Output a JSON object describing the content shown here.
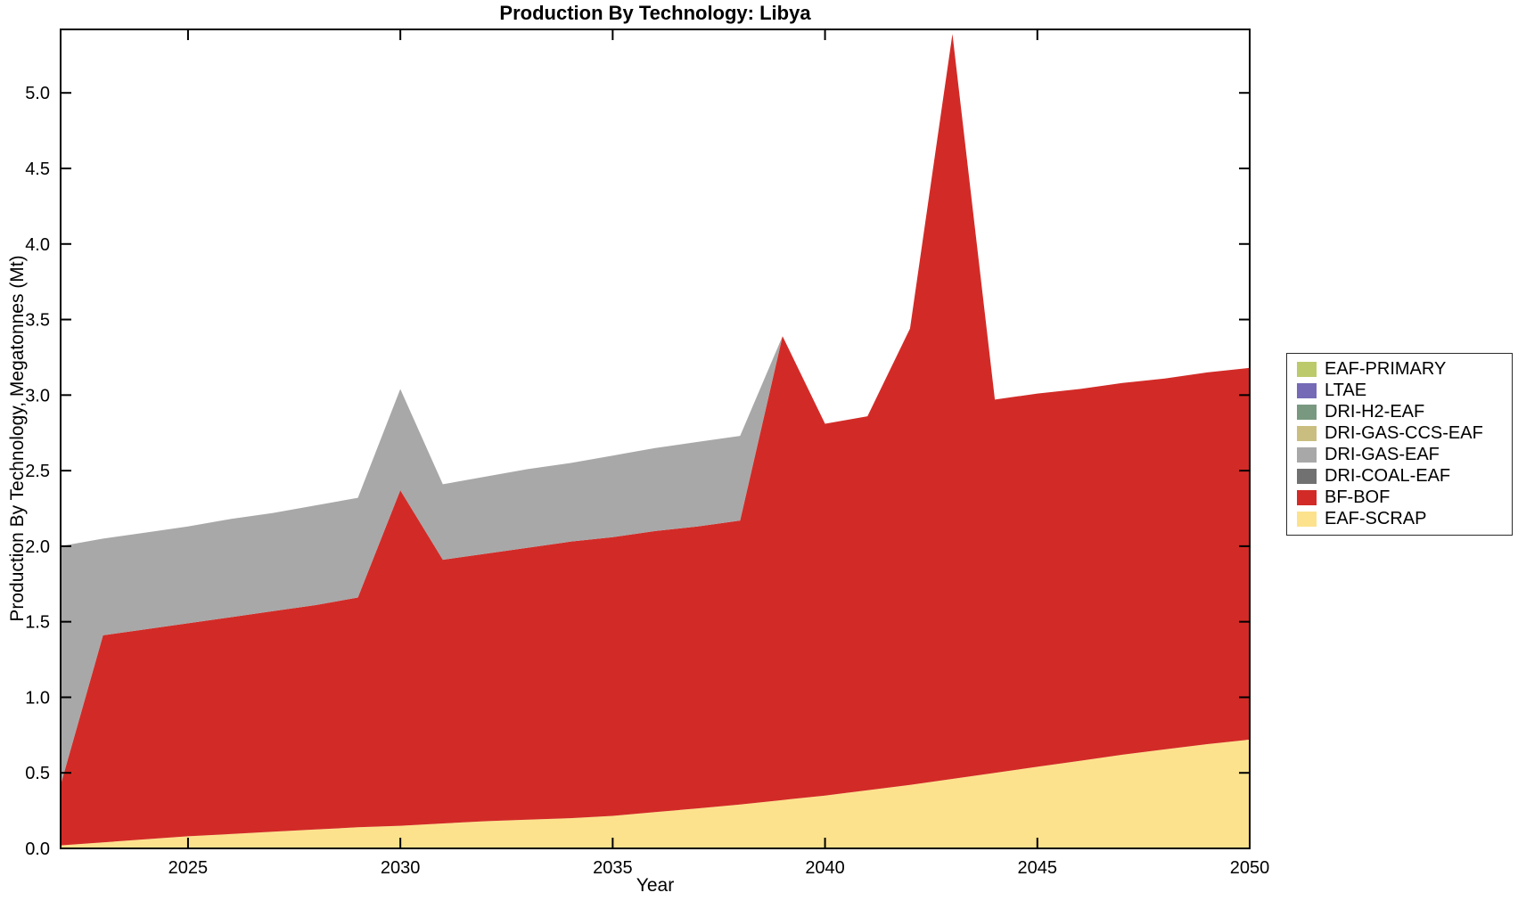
{
  "title": "Production By Technology: Libya",
  "axes": {
    "xlabel": "Year",
    "ylabel": "Production By Technology, Megatonnes (Mt)",
    "xlim": [
      2022,
      2050
    ],
    "ylim": [
      0,
      5.42
    ],
    "x_ticks": [
      2025,
      2030,
      2035,
      2040,
      2045,
      2050
    ],
    "y_ticks": [
      0.0,
      0.5,
      1.0,
      1.5,
      2.0,
      2.5,
      3.0,
      3.5,
      4.0,
      4.5,
      5.0
    ],
    "grid": false,
    "box": true
  },
  "legend": [
    {
      "label": "EAF-PRIMARY",
      "color": "#bcca6b"
    },
    {
      "label": "LTAE",
      "color": "#756ab6"
    },
    {
      "label": "DRI-H2-EAF",
      "color": "#789980"
    },
    {
      "label": "DRI-GAS-CCS-EAF",
      "color": "#c9be7f"
    },
    {
      "label": "DRI-GAS-EAF",
      "color": "#a8a8a8"
    },
    {
      "label": "DRI-COAL-EAF",
      "color": "#717171"
    },
    {
      "label": "BF-BOF",
      "color": "#d22b27"
    },
    {
      "label": "EAF-SCRAP",
      "color": "#fce28d"
    }
  ],
  "chart_data": {
    "type": "area",
    "stacked": true,
    "title": "Production By Technology: Libya",
    "xlabel": "Year",
    "ylabel": "Production By Technology, Megatonnes (Mt)",
    "legend_position": "right-outside",
    "x": [
      2022,
      2023,
      2024,
      2025,
      2026,
      2027,
      2028,
      2029,
      2030,
      2031,
      2032,
      2033,
      2034,
      2035,
      2036,
      2037,
      2038,
      2039,
      2040,
      2041,
      2042,
      2043,
      2044,
      2045,
      2046,
      2047,
      2048,
      2049,
      2050
    ],
    "series": [
      {
        "name": "EAF-SCRAP",
        "color": "#fce28d",
        "values": [
          0.02,
          0.04,
          0.06,
          0.08,
          0.095,
          0.11,
          0.125,
          0.14,
          0.15,
          0.165,
          0.18,
          0.19,
          0.2,
          0.215,
          0.24,
          0.265,
          0.29,
          0.32,
          0.35,
          0.385,
          0.42,
          0.46,
          0.5,
          0.54,
          0.58,
          0.62,
          0.655,
          0.69,
          0.72
        ]
      },
      {
        "name": "BF-BOF",
        "color": "#d22b27",
        "values": [
          0.4,
          1.37,
          1.39,
          1.41,
          1.435,
          1.46,
          1.485,
          1.52,
          2.22,
          1.745,
          1.77,
          1.8,
          1.83,
          1.845,
          1.86,
          1.865,
          1.88,
          3.07,
          2.46,
          2.475,
          3.02,
          4.93,
          2.47,
          2.47,
          2.46,
          2.46,
          2.455,
          2.46,
          2.46
        ]
      },
      {
        "name": "DRI-COAL-EAF",
        "color": "#717171",
        "values": [
          0,
          0,
          0,
          0,
          0,
          0,
          0,
          0,
          0,
          0,
          0,
          0,
          0,
          0,
          0,
          0,
          0,
          0,
          0,
          0,
          0,
          0,
          0,
          0,
          0,
          0,
          0,
          0,
          0
        ]
      },
      {
        "name": "DRI-GAS-EAF",
        "color": "#a8a8a8",
        "values": [
          1.58,
          0.64,
          0.64,
          0.64,
          0.65,
          0.65,
          0.66,
          0.66,
          0.67,
          0.5,
          0.51,
          0.52,
          0.52,
          0.54,
          0.55,
          0.56,
          0.56,
          0,
          0,
          0,
          0,
          0,
          0,
          0,
          0,
          0,
          0,
          0,
          0
        ]
      },
      {
        "name": "DRI-GAS-CCS-EAF",
        "color": "#c9be7f",
        "values": [
          0,
          0,
          0,
          0,
          0,
          0,
          0,
          0,
          0,
          0,
          0,
          0,
          0,
          0,
          0,
          0,
          0,
          0,
          0,
          0,
          0,
          0,
          0,
          0,
          0,
          0,
          0,
          0,
          0
        ]
      },
      {
        "name": "DRI-H2-EAF",
        "color": "#789980",
        "values": [
          0,
          0,
          0,
          0,
          0,
          0,
          0,
          0,
          0,
          0,
          0,
          0,
          0,
          0,
          0,
          0,
          0,
          0,
          0,
          0,
          0,
          0,
          0,
          0,
          0,
          0,
          0,
          0,
          0
        ]
      },
      {
        "name": "LTAE",
        "color": "#756ab6",
        "values": [
          0,
          0,
          0,
          0,
          0,
          0,
          0,
          0,
          0,
          0,
          0,
          0,
          0,
          0,
          0,
          0,
          0,
          0,
          0,
          0,
          0,
          0,
          0,
          0,
          0,
          0,
          0,
          0,
          0
        ]
      },
      {
        "name": "EAF-PRIMARY",
        "color": "#bcca6b",
        "values": [
          0,
          0,
          0,
          0,
          0,
          0,
          0,
          0,
          0,
          0,
          0,
          0,
          0,
          0,
          0,
          0,
          0,
          0,
          0,
          0,
          0,
          0,
          0,
          0,
          0,
          0,
          0,
          0,
          0
        ]
      }
    ],
    "notable_points": {
      "total_2022": 2.0,
      "peak_2030_total": 3.04,
      "peak_2039_total": 3.39,
      "peak_2043_total": 5.39,
      "total_2050": 3.18
    }
  }
}
